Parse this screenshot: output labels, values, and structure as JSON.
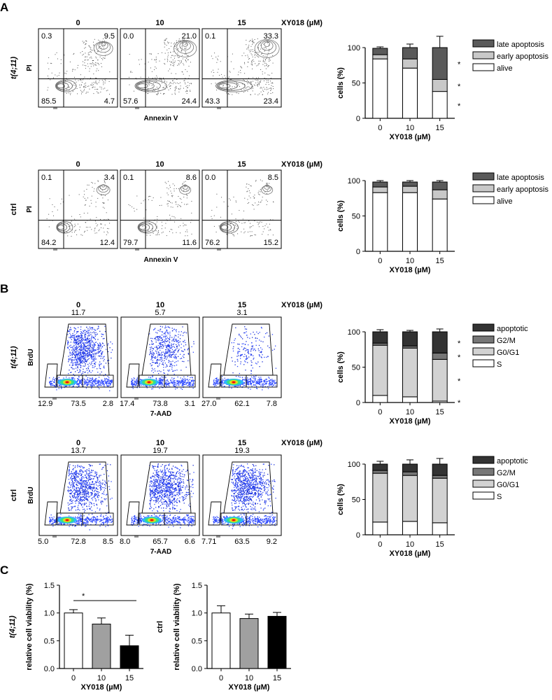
{
  "panels": [
    {
      "letter": "A"
    },
    {
      "letter": "B"
    },
    {
      "letter": "C"
    }
  ],
  "doses": [
    "0",
    "10",
    "15"
  ],
  "dose_unit": "XY018 (µM)",
  "rows": {
    "A1": {
      "row_label": "t(4;11)",
      "ylab": "PI",
      "xlab": "Annexin V",
      "flow": [
        {
          "tl": "0.3",
          "tr": "9.5",
          "bl": "85.5",
          "br": "4.7"
        },
        {
          "tl": "0.0",
          "tr": "21.0",
          "bl": "57.6",
          "br": "24.4"
        },
        {
          "tl": "0.1",
          "tr": "33.3",
          "bl": "43.3",
          "br": "23.4"
        }
      ]
    },
    "A2": {
      "row_label": "ctrl",
      "ylab": "PI",
      "xlab": "Annexin V",
      "flow": [
        {
          "tl": "0.1",
          "tr": "3.4",
          "bl": "84.2",
          "br": "12.4"
        },
        {
          "tl": "0.1",
          "tr": "8.6",
          "bl": "79.7",
          "br": "11.6"
        },
        {
          "tl": "0.0",
          "tr": "8.5",
          "bl": "76.2",
          "br": "15.2"
        }
      ]
    },
    "B1": {
      "row_label": "t(4;11)",
      "ylab": "BrdU",
      "xlab": "7-AAD",
      "flow": [
        {
          "top": "11.7",
          "b1": "12.9",
          "b2": "73.5",
          "b3": "2.8"
        },
        {
          "top": "5.7",
          "b1": "17.4",
          "b2": "73.8",
          "b3": "3.1"
        },
        {
          "top": "3.1",
          "b1": "27.0",
          "b2": "62.1",
          "b3": "7.8"
        }
      ]
    },
    "B2": {
      "row_label": "ctrl",
      "ylab": "BrdU",
      "xlab": "7-AAD",
      "flow": [
        {
          "top": "13.7",
          "b1": "5.0",
          "b2": "72.8",
          "b3": "8.5"
        },
        {
          "top": "19.7",
          "b1": "8.0",
          "b2": "65.7",
          "b3": "6.6"
        },
        {
          "top": "19.3",
          "b1": "7.71",
          "b2": "63.5",
          "b3": "9.2"
        }
      ]
    },
    "C1": {
      "row_label": "t(4;11)"
    },
    "C2": {
      "row_label": "ctrl"
    }
  },
  "chart_data": [
    {
      "id": "A1",
      "type": "bar",
      "stacked": true,
      "categories": [
        "0",
        "10",
        "15"
      ],
      "ylabel": "cells (%)",
      "xlabel": "XY018 (µM)",
      "ylim": [
        0,
        100
      ],
      "series": [
        {
          "name": "alive",
          "color": "#ffffff",
          "values": [
            84,
            71,
            38
          ],
          "errors": [
            2,
            2,
            14
          ]
        },
        {
          "name": "early apoptosis",
          "color": "#c8c8c8",
          "values": [
            6,
            13,
            17
          ],
          "errors": [
            1,
            3,
            6
          ]
        },
        {
          "name": "late apoptosis",
          "color": "#5a5a5a",
          "values": [
            9,
            16,
            45
          ],
          "errors": [
            2,
            5,
            16
          ]
        }
      ],
      "significance": [
        "*",
        "*",
        "*"
      ]
    },
    {
      "id": "A2",
      "type": "bar",
      "stacked": true,
      "categories": [
        "0",
        "10",
        "15"
      ],
      "ylabel": "cells (%)",
      "xlabel": "XY018 (µM)",
      "ylim": [
        0,
        100
      ],
      "series": [
        {
          "name": "alive",
          "color": "#ffffff",
          "values": [
            83,
            83,
            74
          ],
          "errors": [
            3,
            3,
            5
          ]
        },
        {
          "name": "early apoptosis",
          "color": "#c8c8c8",
          "values": [
            8,
            9,
            13
          ],
          "errors": [
            2,
            2,
            4
          ]
        },
        {
          "name": "late apoptosis",
          "color": "#5a5a5a",
          "values": [
            7,
            6,
            11
          ],
          "errors": [
            2,
            2,
            2
          ]
        }
      ],
      "significance": []
    },
    {
      "id": "B1",
      "type": "bar",
      "stacked": true,
      "categories": [
        "0",
        "10",
        "15"
      ],
      "ylabel": "cells (%)",
      "xlabel": "XY018 (µM)",
      "ylim": [
        0,
        100
      ],
      "series": [
        {
          "name": "S",
          "color": "#ffffff",
          "values": [
            10,
            8,
            2
          ],
          "errors": [
            1,
            1,
            0.5
          ]
        },
        {
          "name": "G0/G1",
          "color": "#d2d2d2",
          "values": [
            71,
            69,
            59
          ],
          "errors": [
            2,
            2,
            3
          ]
        },
        {
          "name": "G2/M",
          "color": "#777777",
          "values": [
            3,
            3,
            9
          ],
          "errors": [
            1,
            1,
            2
          ]
        },
        {
          "name": "apoptotic",
          "color": "#333333",
          "values": [
            16,
            20,
            30
          ],
          "errors": [
            3,
            2,
            4
          ]
        }
      ],
      "significance": [
        "*",
        "*",
        "*",
        "*"
      ]
    },
    {
      "id": "B2",
      "type": "bar",
      "stacked": true,
      "categories": [
        "0",
        "10",
        "15"
      ],
      "ylabel": "cells (%)",
      "xlabel": "XY018 (µM)",
      "ylim": [
        0,
        100
      ],
      "series": [
        {
          "name": "S",
          "color": "#ffffff",
          "values": [
            18,
            19,
            17
          ],
          "errors": [
            5,
            5,
            6
          ]
        },
        {
          "name": "G0/G1",
          "color": "#d2d2d2",
          "values": [
            69,
            65,
            63
          ],
          "errors": [
            2,
            2,
            3
          ]
        },
        {
          "name": "G2/M",
          "color": "#777777",
          "values": [
            4,
            5,
            4
          ],
          "errors": [
            1,
            1,
            1
          ]
        },
        {
          "name": "apoptotic",
          "color": "#333333",
          "values": [
            9,
            11,
            16
          ],
          "errors": [
            4,
            6,
            8
          ]
        }
      ],
      "significance": []
    },
    {
      "id": "C1",
      "type": "bar",
      "stacked": false,
      "categories": [
        "0",
        "10",
        "15"
      ],
      "ylabel": "relative cell viability (%)",
      "xlabel": "XY018 (µM)",
      "ylim": [
        0,
        1.5
      ],
      "yticks": [
        "0.0",
        "0.5",
        "1.0",
        "1.5"
      ],
      "values": [
        1.0,
        0.8,
        0.41
      ],
      "errors": [
        0.06,
        0.11,
        0.19
      ],
      "colors": [
        "#ffffff",
        "#a0a0a0",
        "#000000"
      ],
      "significance_bracket": {
        "from": "0",
        "to": "15",
        "label": "*"
      }
    },
    {
      "id": "C2",
      "type": "bar",
      "stacked": false,
      "categories": [
        "0",
        "10",
        "15"
      ],
      "ylabel": "relative cell viability (%)",
      "xlabel": "XY018 (µM)",
      "ylim": [
        0,
        1.5
      ],
      "yticks": [
        "0.0",
        "0.5",
        "1.0",
        "1.5"
      ],
      "values": [
        1.0,
        0.9,
        0.94
      ],
      "errors": [
        0.13,
        0.08,
        0.07
      ],
      "colors": [
        "#ffffff",
        "#a0a0a0",
        "#000000"
      ]
    }
  ]
}
